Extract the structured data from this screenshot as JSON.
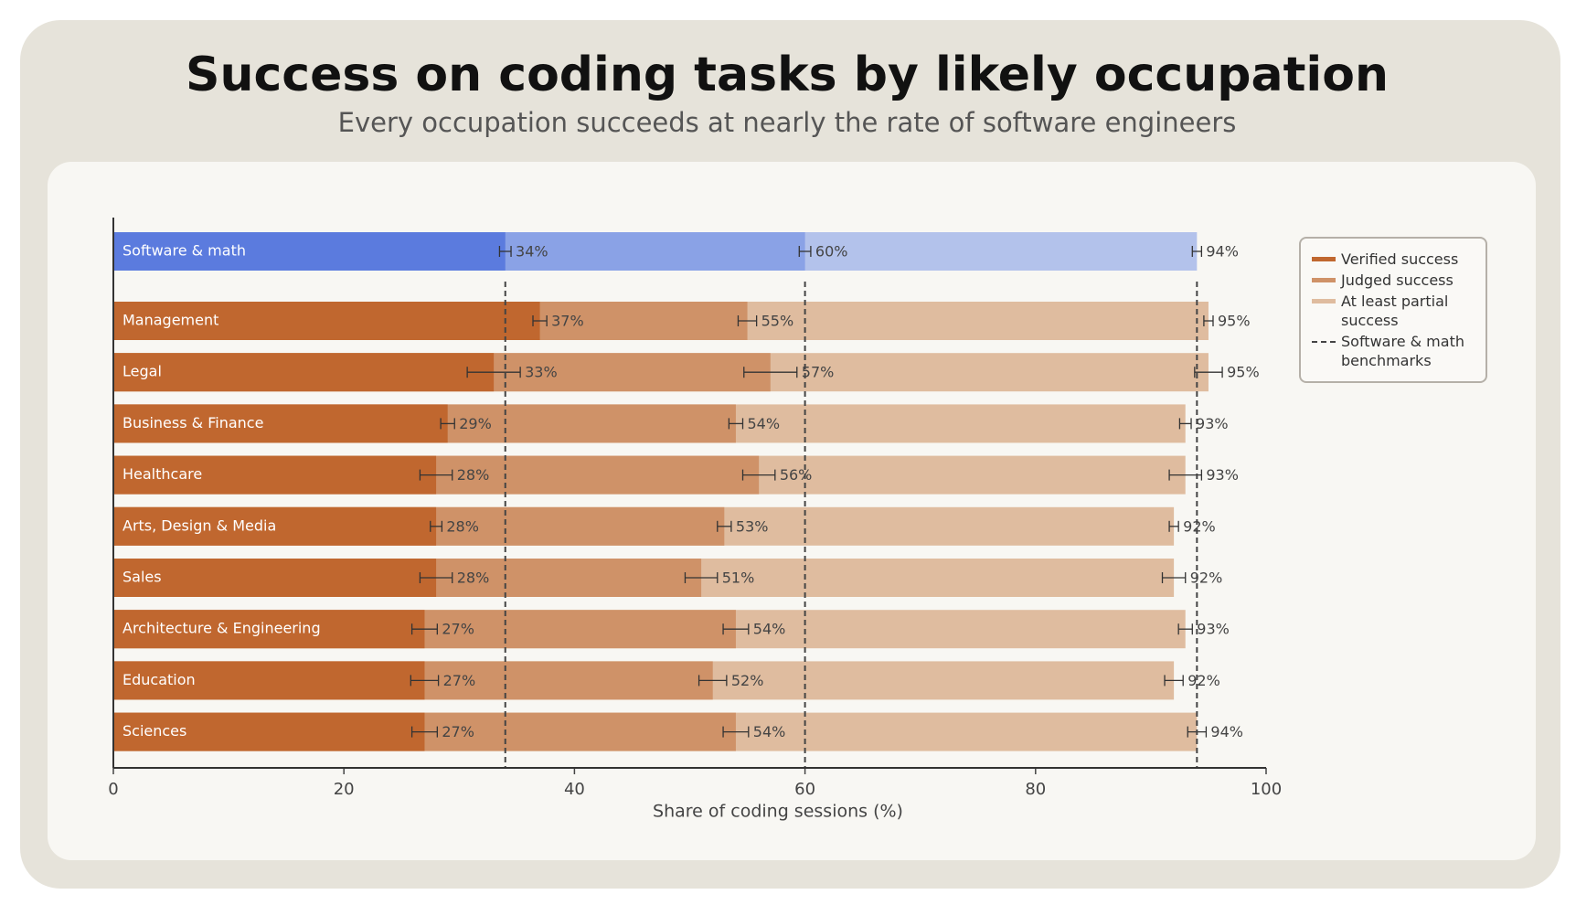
{
  "chart_data": {
    "type": "bar",
    "title": "Success on coding tasks by likely occupation",
    "subtitle": "Every occupation succeeds at nearly the rate of software engineers",
    "x_label": "Share of coding sessions (%)",
    "orientation": "horizontal",
    "categories": [
      "Software & math",
      "Management",
      "Legal",
      "Business & Finance",
      "Healthcare",
      "Arts, Design & Media",
      "Sales",
      "Architecture & Engineering",
      "Education",
      "Sciences"
    ],
    "series": [
      {
        "name": "Verified success",
        "color": "#c0672f",
        "highlight_color": "#5b7bde",
        "values": [
          34,
          37,
          33,
          29,
          28,
          28,
          28,
          27,
          27,
          27
        ],
        "value_labels": [
          "34%",
          "37%",
          "33%",
          "29%",
          "28%",
          "28%",
          "28%",
          "27%",
          "27%",
          "27%"
        ],
        "errors": [
          0.5,
          0.6,
          2.3,
          0.6,
          1.4,
          0.5,
          1.4,
          1.1,
          1.2,
          1.1
        ]
      },
      {
        "name": "Judged success",
        "color": "#cf9268",
        "highlight_color": "#8aa2e6",
        "values": [
          60,
          55,
          57,
          54,
          56,
          53,
          51,
          54,
          52,
          54
        ],
        "value_labels": [
          "60%",
          "55%",
          "57%",
          "54%",
          "56%",
          "53%",
          "51%",
          "54%",
          "52%",
          "54%"
        ],
        "errors": [
          0.5,
          0.8,
          2.3,
          0.6,
          1.4,
          0.6,
          1.4,
          1.1,
          1.2,
          1.1
        ]
      },
      {
        "name": "At least partial success",
        "color": "#dfbc9f",
        "highlight_color": "#b3c2eb",
        "values": [
          94,
          95,
          95,
          93,
          93,
          92,
          92,
          93,
          92,
          94
        ],
        "value_labels": [
          "94%",
          "95%",
          "95%",
          "93%",
          "93%",
          "92%",
          "92%",
          "93%",
          "92%",
          "94%"
        ],
        "errors": [
          0.4,
          0.4,
          1.2,
          0.5,
          1.4,
          0.4,
          1.0,
          0.6,
          0.8,
          0.8
        ]
      }
    ],
    "benchmark_label": "Software & math benchmarks",
    "xlim": [
      0,
      100
    ],
    "xticks": [
      0,
      20,
      40,
      60,
      80,
      100
    ],
    "grid": false,
    "legend": "upper right"
  }
}
